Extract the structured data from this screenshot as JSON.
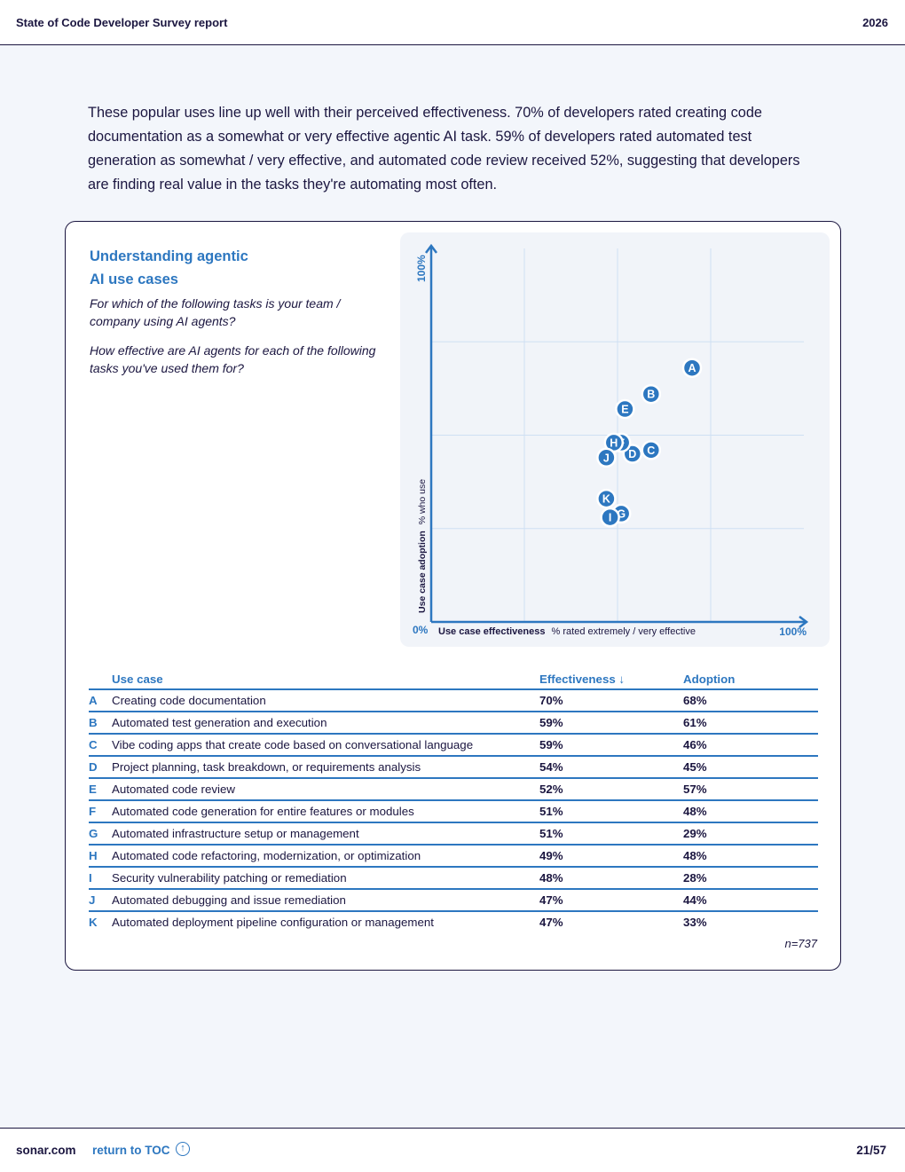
{
  "header": {
    "title": "State of Code Developer Survey report",
    "year": "2026"
  },
  "intro": "These popular uses line up well with their perceived effectiveness. 70% of developers rated creating code documentation as a somewhat or very effective agentic AI task. 59% of developers rated automated test generation as somewhat / very effective, and automated code review received 52%, suggesting that developers are finding real value in the tasks they're automating most often.",
  "card": {
    "title_line1": "Understanding agentic",
    "title_line2": "AI use cases",
    "question1": "For which of the following tasks is your team / company using AI agents?",
    "question2": "How effective are AI agents for each of the following tasks you've used them for?",
    "n_label": "n=737"
  },
  "chart_data": {
    "type": "scatter",
    "x_axis": {
      "label_bold": "Use case effectiveness",
      "label_rest": "% rated extremely / very effective",
      "min_label": "0%",
      "max_label": "100%",
      "range": [
        0,
        100
      ]
    },
    "y_axis": {
      "label_bold": "Use case adoption",
      "label_rest": "% who use",
      "max_label": "100%",
      "range": [
        0,
        100
      ]
    },
    "grid": true,
    "points": [
      {
        "key": "A",
        "effectiveness": 70,
        "adoption": 68
      },
      {
        "key": "B",
        "effectiveness": 59,
        "adoption": 61
      },
      {
        "key": "C",
        "effectiveness": 59,
        "adoption": 46
      },
      {
        "key": "D",
        "effectiveness": 54,
        "adoption": 45
      },
      {
        "key": "E",
        "effectiveness": 52,
        "adoption": 57
      },
      {
        "key": "F",
        "effectiveness": 51,
        "adoption": 48
      },
      {
        "key": "G",
        "effectiveness": 51,
        "adoption": 29
      },
      {
        "key": "H",
        "effectiveness": 49,
        "adoption": 48
      },
      {
        "key": "I",
        "effectiveness": 48,
        "adoption": 28
      },
      {
        "key": "J",
        "effectiveness": 47,
        "adoption": 44
      },
      {
        "key": "K",
        "effectiveness": 47,
        "adoption": 33
      }
    ],
    "colors": {
      "accent": "#2d77c0",
      "grid": "#cfe0f3"
    }
  },
  "table": {
    "headers": {
      "use_case": "Use case",
      "effectiveness": "Effectiveness ↓",
      "adoption": "Adoption"
    },
    "rows": [
      {
        "key": "A",
        "use_case": "Creating code documentation",
        "effectiveness": "70%",
        "adoption": "68%"
      },
      {
        "key": "B",
        "use_case": "Automated test generation and execution",
        "effectiveness": "59%",
        "adoption": "61%"
      },
      {
        "key": "C",
        "use_case": "Vibe coding apps that create code based on conversational language",
        "effectiveness": "59%",
        "adoption": "46%"
      },
      {
        "key": "D",
        "use_case": "Project planning, task breakdown, or requirements analysis",
        "effectiveness": "54%",
        "adoption": "45%"
      },
      {
        "key": "E",
        "use_case": "Automated code review",
        "effectiveness": "52%",
        "adoption": "57%"
      },
      {
        "key": "F",
        "use_case": "Automated code generation for entire features or modules",
        "effectiveness": "51%",
        "adoption": "48%"
      },
      {
        "key": "G",
        "use_case": "Automated infrastructure setup or management",
        "effectiveness": "51%",
        "adoption": "29%"
      },
      {
        "key": "H",
        "use_case": "Automated code refactoring, modernization, or optimization",
        "effectiveness": "49%",
        "adoption": "48%"
      },
      {
        "key": "I",
        "use_case": "Security vulnerability patching or remediation",
        "effectiveness": "48%",
        "adoption": "28%"
      },
      {
        "key": "J",
        "use_case": "Automated debugging and issue remediation",
        "effectiveness": "47%",
        "adoption": "44%"
      },
      {
        "key": "K",
        "use_case": "Automated deployment pipeline configuration or management",
        "effectiveness": "47%",
        "adoption": "33%"
      }
    ]
  },
  "footer": {
    "site": "sonar.com",
    "toc": "return to TOC",
    "toc_icon": "arrow-up-circle-icon",
    "page": "21/57"
  }
}
